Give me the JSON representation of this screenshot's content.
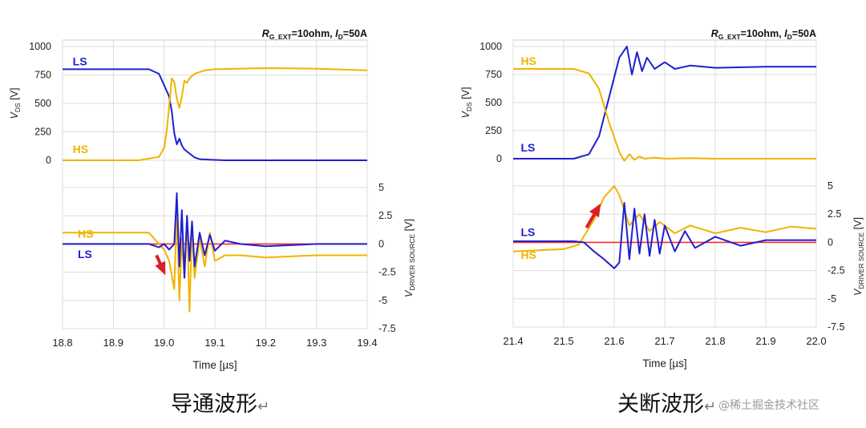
{
  "colors": {
    "ls": "#1f1fd0",
    "hs": "#f0b400",
    "zero": "#ff2a2a",
    "arrow": "#d8202a",
    "grid": "#dcdcdc",
    "axis": "#888888"
  },
  "chart_data": [
    {
      "type": "line",
      "name": "turn-on",
      "caption": "导通波形",
      "caption_mark": "↵",
      "condition_parts": [
        "R",
        "G_EXT",
        "=10ohm, ",
        "I",
        "D",
        "=50A"
      ],
      "xlabel": "Time [µs]",
      "xlim": [
        18.8,
        19.4
      ],
      "xticks": [
        "18.8",
        "18.9",
        "19.0",
        "19.1",
        "19.2",
        "19.3",
        "19.4"
      ],
      "grid": true,
      "upper": {
        "ylabel_main": "V",
        "ylabel_sub": "DS",
        "ylabel_unit": " [V]",
        "ylim": [
          0,
          1000
        ],
        "yticks": [
          "1000",
          "750",
          "500",
          "250",
          "0"
        ],
        "series": [
          {
            "name": "LS",
            "x": [
              18.8,
              18.97,
              18.99,
              19.0,
              19.01,
              19.015,
              19.02,
              19.025,
              19.03,
              19.035,
              19.04,
              19.05,
              19.06,
              19.07,
              19.09,
              19.12,
              19.2,
              19.3,
              19.4
            ],
            "values": [
              800,
              800,
              760,
              660,
              560,
              430,
              240,
              140,
              190,
              130,
              95,
              60,
              25,
              10,
              5,
              0,
              0,
              0,
              0
            ]
          },
          {
            "name": "HS",
            "x": [
              18.8,
              18.95,
              18.99,
              19.0,
              19.005,
              19.01,
              19.015,
              19.02,
              19.025,
              19.03,
              19.035,
              19.04,
              19.045,
              19.05,
              19.06,
              19.08,
              19.1,
              19.2,
              19.3,
              19.4
            ],
            "values": [
              0,
              0,
              30,
              110,
              250,
              480,
              720,
              690,
              540,
              460,
              560,
              700,
              680,
              720,
              760,
              790,
              800,
              810,
              805,
              790
            ]
          }
        ],
        "series_labels": [
          {
            "text": "LS",
            "x": 18.82,
            "y": 870
          },
          {
            "text": "HS",
            "x": 18.82,
            "y": 100
          }
        ]
      },
      "lower": {
        "ylabel_main": "V",
        "ylabel_sub": "DRIVER SOURCE",
        "ylabel_unit": " [V]",
        "ylim": [
          -7.5,
          5
        ],
        "yticks": [
          "5",
          "2.5",
          "0",
          "-2.5",
          "-5",
          "-7.5"
        ],
        "series": [
          {
            "name": "HS",
            "x": [
              18.8,
              18.97,
              18.99,
              19.0,
              19.01,
              19.02,
              19.025,
              19.03,
              19.035,
              19.04,
              19.045,
              19.05,
              19.055,
              19.06,
              19.07,
              19.08,
              19.09,
              19.1,
              19.12,
              19.15,
              19.2,
              19.3,
              19.4
            ],
            "values": [
              1.0,
              1.0,
              0.0,
              -0.5,
              -1.5,
              -4.0,
              3.0,
              -5.0,
              0.5,
              -3.0,
              2.5,
              -6.0,
              1.5,
              -3.0,
              0.5,
              -2.0,
              1.0,
              -1.5,
              -1.0,
              -1.0,
              -1.2,
              -1.0,
              -1.0
            ]
          },
          {
            "name": "LS",
            "x": [
              18.8,
              18.97,
              18.99,
              19.0,
              19.01,
              19.02,
              19.025,
              19.03,
              19.035,
              19.04,
              19.045,
              19.05,
              19.055,
              19.06,
              19.07,
              19.08,
              19.09,
              19.1,
              19.12,
              19.15,
              19.2,
              19.3,
              19.4
            ],
            "values": [
              0.0,
              0.0,
              -0.3,
              0.0,
              -0.5,
              0.0,
              4.5,
              -2.0,
              3.0,
              -3.0,
              2.5,
              -1.5,
              2.0,
              -2.0,
              1.0,
              -1.0,
              0.8,
              -0.6,
              0.3,
              0.0,
              -0.2,
              0.0,
              0.0
            ]
          }
        ],
        "series_labels": [
          {
            "text": "HS",
            "x": 18.83,
            "y": 0.9
          },
          {
            "text": "LS",
            "x": 18.83,
            "y": -0.9
          }
        ],
        "arrow": {
          "from": [
            18.985,
            -1.0
          ],
          "to": [
            19.0,
            -2.5
          ]
        }
      }
    },
    {
      "type": "line",
      "name": "turn-off",
      "caption": "关断波形",
      "caption_mark": "↵",
      "condition_parts": [
        "R",
        "G_EXT",
        "=10ohm, ",
        "I",
        "D",
        "=50A"
      ],
      "xlabel": "Time [µs]",
      "xlim": [
        21.4,
        22.0
      ],
      "xticks": [
        "21.4",
        "21.5",
        "21.6",
        "21.7",
        "21.8",
        "21.9",
        "22.0"
      ],
      "grid": true,
      "upper": {
        "ylabel_main": "V",
        "ylabel_sub": "DS",
        "ylabel_unit": " [V]",
        "ylim": [
          0,
          1000
        ],
        "yticks": [
          "1000",
          "750",
          "500",
          "250",
          "0"
        ],
        "series": [
          {
            "name": "LS",
            "x": [
              21.4,
              21.52,
              21.55,
              21.57,
              21.59,
              21.61,
              21.625,
              21.635,
              21.645,
              21.655,
              21.665,
              21.68,
              21.7,
              21.72,
              21.75,
              21.8,
              21.9,
              22.0
            ],
            "values": [
              0,
              0,
              40,
              200,
              550,
              900,
              1000,
              750,
              950,
              780,
              900,
              800,
              860,
              800,
              830,
              810,
              820,
              820
            ]
          },
          {
            "name": "HS",
            "x": [
              21.4,
              21.52,
              21.55,
              21.57,
              21.59,
              21.61,
              21.62,
              21.63,
              21.64,
              21.65,
              21.66,
              21.68,
              21.7,
              21.75,
              21.8,
              21.9,
              22.0
            ],
            "values": [
              800,
              800,
              760,
              620,
              320,
              60,
              -20,
              40,
              -10,
              20,
              0,
              10,
              0,
              5,
              0,
              0,
              0
            ]
          }
        ],
        "series_labels": [
          {
            "text": "HS",
            "x": 21.415,
            "y": 870
          },
          {
            "text": "LS",
            "x": 21.415,
            "y": 100
          }
        ]
      },
      "lower": {
        "ylabel_main": "V",
        "ylabel_sub": "DRIVER SOURCE",
        "ylabel_unit": " [V]",
        "ylim": [
          -7.5,
          5
        ],
        "yticks": [
          "5",
          "2.5",
          "0",
          "-2.5",
          "-5",
          "-7.5"
        ],
        "series": [
          {
            "name": "HS",
            "x": [
              21.4,
              21.5,
              21.53,
              21.56,
              21.58,
              21.6,
              21.61,
              21.63,
              21.65,
              21.67,
              21.69,
              21.72,
              21.75,
              21.8,
              21.85,
              21.9,
              21.95,
              22.0
            ],
            "values": [
              -0.8,
              -0.6,
              -0.2,
              2.0,
              4.0,
              5.0,
              4.2,
              1.5,
              2.5,
              1.0,
              1.8,
              0.8,
              1.5,
              0.8,
              1.3,
              0.9,
              1.4,
              1.2
            ]
          },
          {
            "name": "LS",
            "x": [
              21.4,
              21.52,
              21.54,
              21.56,
              21.58,
              21.6,
              21.61,
              21.62,
              21.63,
              21.64,
              21.65,
              21.66,
              21.67,
              21.68,
              21.69,
              21.7,
              21.72,
              21.74,
              21.76,
              21.8,
              21.85,
              21.9,
              22.0
            ],
            "values": [
              0.1,
              0.1,
              0.0,
              -0.8,
              -1.5,
              -2.3,
              -1.8,
              3.5,
              -1.5,
              3.0,
              -1.0,
              2.5,
              -1.2,
              2.0,
              -1.0,
              1.5,
              -0.8,
              1.0,
              -0.5,
              0.5,
              -0.3,
              0.2,
              0.2
            ]
          }
        ],
        "series_labels": [
          {
            "text": "LS",
            "x": 21.415,
            "y": 0.9
          },
          {
            "text": "HS",
            "x": 21.415,
            "y": -1.1
          }
        ],
        "arrow": {
          "from": [
            21.545,
            1.3
          ],
          "to": [
            21.57,
            3.2
          ]
        }
      }
    }
  ],
  "watermark": "@稀土掘金技术社区"
}
